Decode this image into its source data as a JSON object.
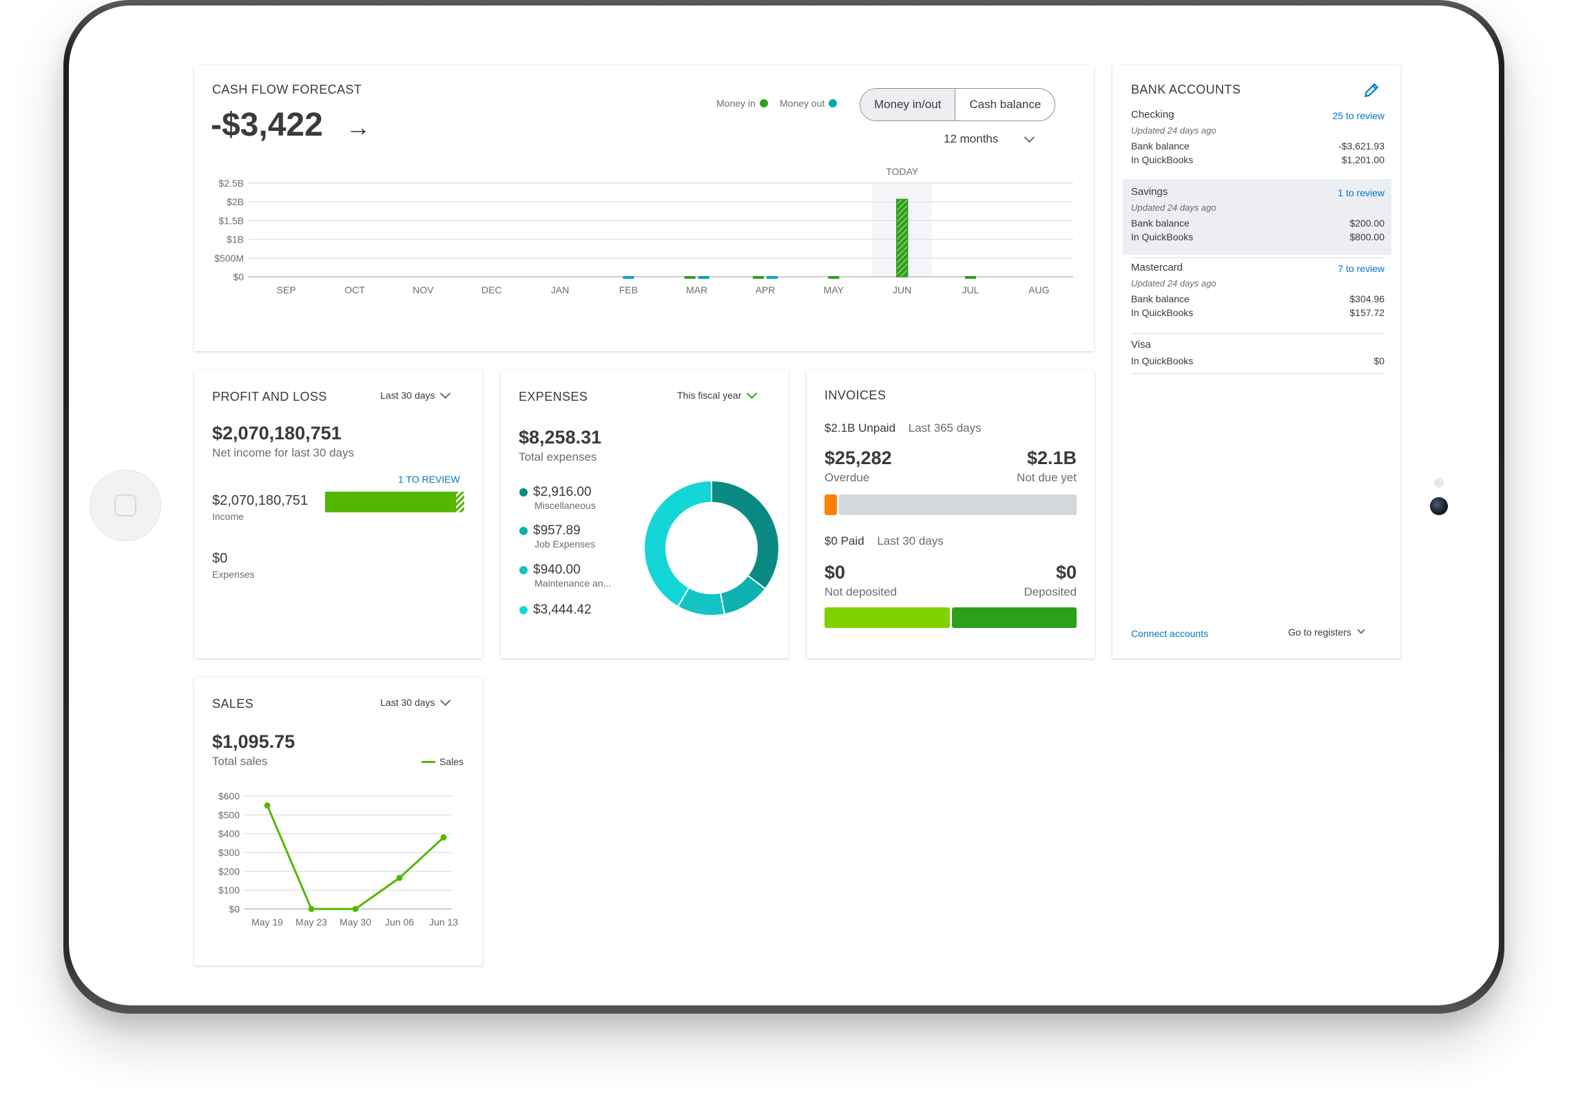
{
  "cash_flow": {
    "title": "CASH FLOW FORECAST",
    "amount": "-$3,422",
    "legend_in": "Money in",
    "legend_out": "Money out",
    "tab_active": "Money in/out",
    "tab_other": "Cash balance",
    "period": "12 months",
    "today_label": "TODAY",
    "colors": {
      "money_in": "#2ca01c",
      "money_out": "#00a6b8",
      "grid": "#e3e3e3"
    },
    "chart_data": {
      "type": "bar",
      "categories": [
        "SEP",
        "OCT",
        "NOV",
        "DEC",
        "JAN",
        "FEB",
        "MAR",
        "APR",
        "MAY",
        "JUN",
        "JUL",
        "AUG"
      ],
      "y_ticks": [
        "$0",
        "$500M",
        "$1B",
        "$1.5B",
        "$2B",
        "$2.5B"
      ],
      "ylim": [
        0,
        2.5
      ],
      "series": [
        {
          "name": "Money in",
          "values": [
            0,
            0,
            0,
            0,
            0,
            0,
            0.02,
            0.02,
            0.02,
            2.07,
            0.02,
            0
          ]
        },
        {
          "name": "Money out",
          "values": [
            0,
            0,
            0,
            0,
            0,
            0.02,
            0.02,
            0.02,
            0,
            0,
            0,
            0
          ]
        }
      ]
    }
  },
  "bank": {
    "title": "BANK ACCOUNTS",
    "accounts": [
      {
        "name": "Checking",
        "review": "25 to review",
        "updated": "Updated 24 days ago",
        "bank_label": "Bank balance",
        "bank_value": "-$3,621.93",
        "qb_label": "In QuickBooks",
        "qb_value": "$1,201.00"
      },
      {
        "name": "Savings",
        "review": "1 to review",
        "updated": "Updated 24 days ago",
        "bank_label": "Bank balance",
        "bank_value": "$200.00",
        "qb_label": "In QuickBooks",
        "qb_value": "$800.00"
      },
      {
        "name": "Mastercard",
        "review": "7 to review",
        "updated": "Updated 24 days ago",
        "bank_label": "Bank balance",
        "bank_value": "$304.96",
        "qb_label": "In QuickBooks",
        "qb_value": "$157.72"
      },
      {
        "name": "Visa",
        "qb_label": "In QuickBooks",
        "qb_value": "$0"
      }
    ],
    "connect": "Connect accounts",
    "registers": "Go to registers"
  },
  "pnl": {
    "title": "PROFIT AND LOSS",
    "range": "Last 30 days",
    "net": "$2,070,180,751",
    "net_label": "Net income for last 30 days",
    "review": "1 TO REVIEW",
    "income_value": "$2,070,180,751",
    "income_label": "Income",
    "expenses_value": "$0",
    "expenses_label": "Expenses"
  },
  "expenses": {
    "title": "EXPENSES",
    "range": "This fiscal year",
    "total": "$8,258.31",
    "total_label": "Total expenses",
    "items": [
      {
        "amount": "$2,916.00",
        "category": "Miscellaneous",
        "color": "#0b8a84",
        "value": 2916.0
      },
      {
        "amount": "$957.89",
        "category": "Job Expenses",
        "color": "#0fb1b0",
        "value": 957.89
      },
      {
        "amount": "$940.00",
        "category": "Maintenance an...",
        "color": "#13c4c4",
        "value": 940.0
      },
      {
        "amount": "$3,444.42",
        "category": "",
        "color": "#14d6d6",
        "value": 3444.42
      }
    ]
  },
  "invoices": {
    "title": "INVOICES",
    "unpaid": "$2.1B Unpaid",
    "unpaid_range": "Last 365 days",
    "overdue_value": "$25,282",
    "overdue_label": "Overdue",
    "notdue_value": "$2.1B",
    "notdue_label": "Not due yet",
    "overdue_fraction": 0.05,
    "paid": "$0 Paid",
    "paid_range": "Last 30 days",
    "notdeposited_value": "$0",
    "notdeposited_label": "Not deposited",
    "deposited_value": "$0",
    "deposited_label": "Deposited",
    "colors": {
      "overdue": "#ff8000",
      "notdue": "#d4d7dc",
      "notdeposited": "#7fd100",
      "deposited": "#2ca01c"
    }
  },
  "sales": {
    "title": "SALES",
    "range": "Last 30 days",
    "total": "$1,095.75",
    "total_label": "Total sales",
    "legend": "Sales",
    "chart_data": {
      "type": "line",
      "x": [
        "May 19",
        "May 23",
        "May 30",
        "Jun 06",
        "Jun 13"
      ],
      "y_ticks": [
        "$0",
        "$100",
        "$200",
        "$300",
        "$400",
        "$500",
        "$600"
      ],
      "ylim": [
        0,
        600
      ],
      "series": [
        {
          "name": "Sales",
          "values": [
            550,
            0,
            0,
            165,
            380
          ]
        }
      ]
    }
  }
}
